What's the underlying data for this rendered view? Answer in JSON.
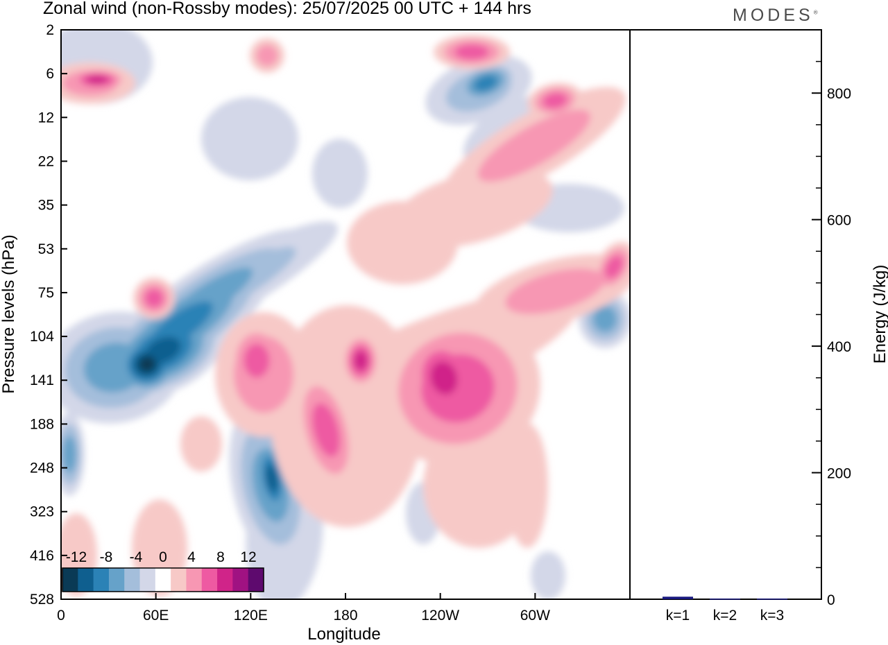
{
  "title": "Zonal wind (non-Rossby modes):  25/07/2025  00 UTC  + 144 hrs",
  "brand": "MODES",
  "brand_mark": "®",
  "colors": {
    "neg": [
      "#0a3a55",
      "#0f5f8f",
      "#2b82b6",
      "#66a2c9",
      "#a4bedb",
      "#d3d7e8"
    ],
    "pos": [
      "#f7c9c7",
      "#f797b3",
      "#ee5aa2",
      "#d02489",
      "#a01282",
      "#5e0a6e"
    ]
  },
  "chart_data": [
    {
      "type": "heatmap",
      "title": "Zonal wind (non-Rossby modes):  25/07/2025  00 UTC  + 144 hrs",
      "xlabel": "Longitude",
      "ylabel": "Pressure levels (hPa)",
      "x_ticks": [
        "0",
        "60E",
        "120E",
        "180",
        "120W",
        "60W"
      ],
      "y_ticks": [
        "2",
        "6",
        "12",
        "22",
        "35",
        "53",
        "75",
        "104",
        "141",
        "188",
        "248",
        "323",
        "416",
        "528"
      ],
      "colorbar_labels": [
        "-12",
        "-8",
        "-4",
        "0",
        "4",
        "8",
        "12"
      ],
      "contour_levels": [
        -12,
        -10,
        -8,
        -6,
        -4,
        -2,
        0,
        2,
        4,
        6,
        8,
        10,
        12
      ]
    },
    {
      "type": "bar",
      "categories": [
        "k=1",
        "k=2",
        "k=3"
      ],
      "values": [
        4,
        1,
        1
      ],
      "ylabel": "Energy (J/kg)",
      "ylim": [
        0,
        900
      ],
      "y_ticks": [
        "0",
        "200",
        "400",
        "600",
        "800"
      ],
      "bar_color": "#1a1a80"
    }
  ]
}
